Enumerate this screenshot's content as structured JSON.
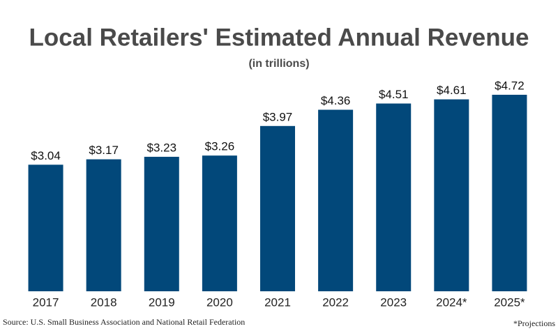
{
  "chart_data": {
    "type": "bar",
    "title": "Local Retailers' Estimated Annual Revenue",
    "subtitle": "(in trillions)",
    "categories": [
      "2017",
      "2018",
      "2019",
      "2020",
      "2021",
      "2022",
      "2023",
      "2024*",
      "2025*"
    ],
    "values": [
      3.04,
      3.17,
      3.23,
      3.26,
      3.97,
      4.36,
      4.51,
      4.61,
      4.72
    ],
    "value_labels": [
      "$3.04",
      "$3.17",
      "$3.23",
      "$3.26",
      "$3.97",
      "$4.36",
      "$4.51",
      "$4.61",
      "$4.72"
    ],
    "color": "#02487a",
    "source": "Source: U.S. Small Business Association and National Retail Federation",
    "note": "*Projections"
  }
}
